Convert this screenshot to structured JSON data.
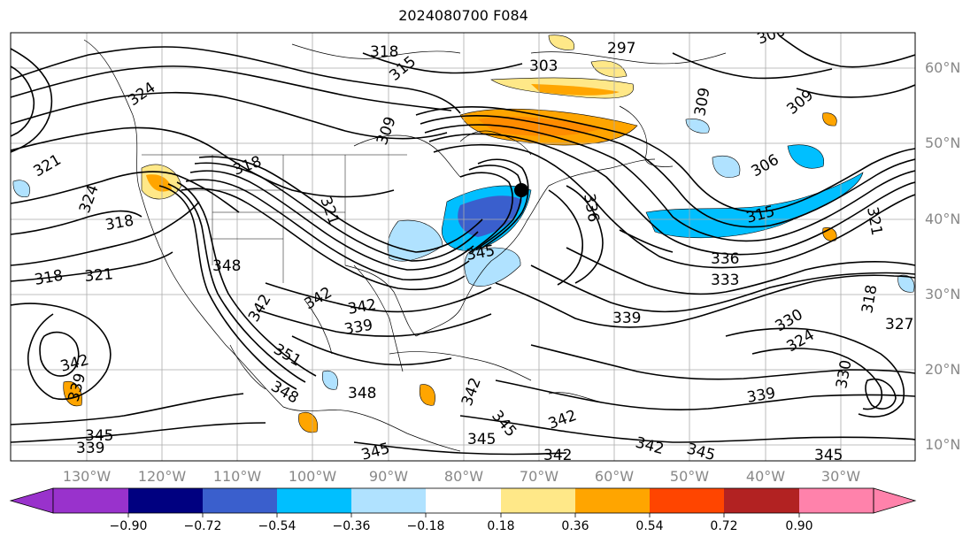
{
  "title": "2024080700 F084",
  "lat_labels": [
    "60°N",
    "50°N",
    "40°N",
    "30°N",
    "20°N",
    "10°N"
  ],
  "lon_labels": [
    "130°W",
    "120°W",
    "110°W",
    "100°W",
    "90°W",
    "80°W",
    "70°W",
    "60°W",
    "50°W",
    "40°W",
    "30°W"
  ],
  "colorbar": {
    "ticks": [
      "−0.90",
      "−0.72",
      "−0.54",
      "−0.36",
      "−0.18",
      "0.18",
      "0.36",
      "0.54",
      "0.72",
      "0.90"
    ],
    "colors": [
      "#9932cc",
      "#000080",
      "#3a5fcd",
      "#00bfff",
      "#b0e2ff",
      "#ffffff",
      "#ffe888",
      "#ffa500",
      "#ff4500",
      "#b22222",
      "#ff82ab"
    ]
  },
  "contour_labels": [
    "318",
    "315",
    "297",
    "303",
    "300",
    "309",
    "324",
    "309",
    "306",
    "321",
    "309",
    "318",
    "324",
    "315",
    "321",
    "318",
    "318",
    "321",
    "321",
    "336",
    "336",
    "333",
    "345",
    "342",
    "348",
    "339",
    "330",
    "324",
    "318",
    "327",
    "339",
    "339",
    "342",
    "351",
    "348",
    "342",
    "348",
    "342",
    "345",
    "345",
    "342",
    "342",
    "345",
    "339",
    "345",
    "345",
    "345",
    "330",
    "342",
    "342",
    "339"
  ]
}
